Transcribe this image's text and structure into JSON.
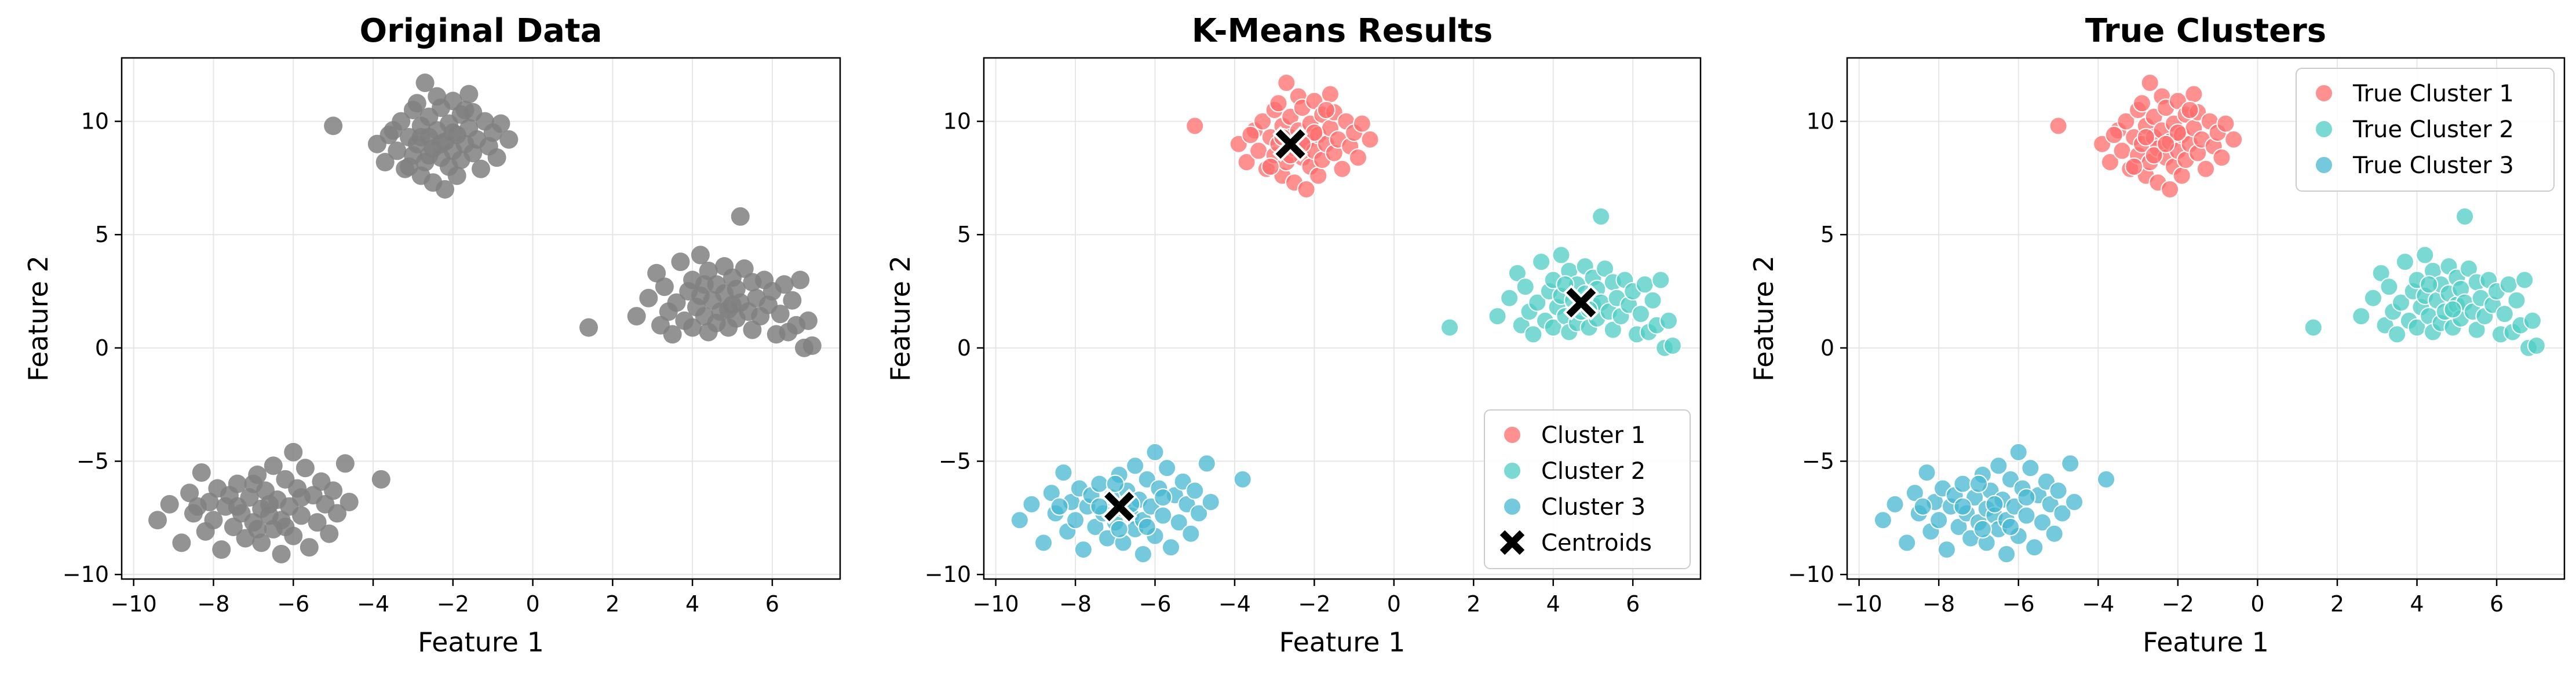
{
  "colors": {
    "gray": "#808080",
    "cluster1": "#FF6B6B",
    "cluster2": "#4ECDC4",
    "cluster3": "#45B7D1",
    "centroid": "#000000",
    "grid": "#e6e6e6"
  },
  "chart_data": [
    {
      "type": "scatter",
      "title": "Original Data",
      "xlabel": "Feature 1",
      "ylabel": "Feature 2",
      "xlim": [
        -10.3,
        7.7
      ],
      "ylim": [
        -10.2,
        12.8
      ],
      "xticks": [
        -10,
        -8,
        -6,
        -4,
        -2,
        0,
        2,
        4,
        6
      ],
      "yticks": [
        -10,
        -5,
        0,
        5,
        10
      ],
      "grid": true,
      "legend": null,
      "series": [
        {
          "color": "gray",
          "points_ref": "all"
        }
      ]
    },
    {
      "type": "scatter",
      "title": "K-Means Results",
      "xlabel": "Feature 1",
      "ylabel": "Feature 2",
      "xlim": [
        -10.3,
        7.7
      ],
      "ylim": [
        -10.2,
        12.8
      ],
      "xticks": [
        -10,
        -8,
        -6,
        -4,
        -2,
        0,
        2,
        4,
        6
      ],
      "yticks": [
        -10,
        -5,
        0,
        5,
        10
      ],
      "grid": true,
      "legend": "lower-right",
      "series": [
        {
          "name": "Cluster 1",
          "color": "cluster1",
          "points_ref": "c1"
        },
        {
          "name": "Cluster 2",
          "color": "cluster2",
          "points_ref": "c2"
        },
        {
          "name": "Cluster 3",
          "color": "cluster3",
          "points_ref": "c3"
        },
        {
          "name": "Centroids",
          "color": "centroid",
          "marker": "x",
          "points": [
            [
              -2.6,
              9.0
            ],
            [
              4.7,
              2.0
            ],
            [
              -6.9,
              -7.0
            ]
          ]
        }
      ]
    },
    {
      "type": "scatter",
      "title": "True Clusters",
      "xlabel": "Feature 1",
      "ylabel": "Feature 2",
      "xlim": [
        -10.3,
        7.7
      ],
      "ylim": [
        -10.2,
        12.8
      ],
      "xticks": [
        -10,
        -8,
        -6,
        -4,
        -2,
        0,
        2,
        4,
        6
      ],
      "yticks": [
        -10,
        -5,
        0,
        5,
        10
      ],
      "grid": true,
      "legend": "top-right",
      "series": [
        {
          "name": "True Cluster 1",
          "color": "cluster1",
          "points_ref": "c1"
        },
        {
          "name": "True Cluster 2",
          "color": "cluster2",
          "points_ref": "c2"
        },
        {
          "name": "True Cluster 3",
          "color": "cluster3",
          "points_ref": "c3"
        }
      ]
    }
  ],
  "points": {
    "c1": [
      [
        -5.0,
        9.8
      ],
      [
        -3.9,
        9.0
      ],
      [
        -3.7,
        8.2
      ],
      [
        -3.5,
        9.6
      ],
      [
        -3.4,
        8.7
      ],
      [
        -3.3,
        10.0
      ],
      [
        -3.2,
        7.9
      ],
      [
        -3.1,
        9.3
      ],
      [
        -3.0,
        8.5
      ],
      [
        -3.0,
        10.5
      ],
      [
        -2.9,
        9.0
      ],
      [
        -2.8,
        7.6
      ],
      [
        -2.8,
        9.8
      ],
      [
        -2.7,
        8.2
      ],
      [
        -2.7,
        11.7
      ],
      [
        -2.6,
        9.3
      ],
      [
        -2.6,
        10.2
      ],
      [
        -2.5,
        8.8
      ],
      [
        -2.5,
        7.3
      ],
      [
        -2.4,
        9.6
      ],
      [
        -2.4,
        11.1
      ],
      [
        -2.3,
        8.4
      ],
      [
        -2.3,
        10.6
      ],
      [
        -2.2,
        9.1
      ],
      [
        -2.2,
        7.0
      ],
      [
        -2.1,
        9.9
      ],
      [
        -2.1,
        8.0
      ],
      [
        -2.0,
        10.9
      ],
      [
        -2.0,
        8.7
      ],
      [
        -1.9,
        9.4
      ],
      [
        -1.9,
        7.6
      ],
      [
        -1.8,
        10.3
      ],
      [
        -1.8,
        8.3
      ],
      [
        -1.7,
        9.0
      ],
      [
        -1.6,
        11.2
      ],
      [
        -1.6,
        9.7
      ],
      [
        -1.5,
        8.6
      ],
      [
        -1.5,
        10.4
      ],
      [
        -1.4,
        9.2
      ],
      [
        -1.3,
        7.9
      ],
      [
        -1.2,
        10.0
      ],
      [
        -1.1,
        8.9
      ],
      [
        -1.0,
        9.5
      ],
      [
        -0.9,
        8.4
      ],
      [
        -0.8,
        9.9
      ],
      [
        -0.6,
        9.2
      ],
      [
        -2.9,
        10.8
      ],
      [
        -3.6,
        9.4
      ],
      [
        -2.0,
        9.5
      ],
      [
        -2.6,
        8.5
      ],
      [
        -1.7,
        10.5
      ],
      [
        -3.1,
        8.0
      ],
      [
        -2.3,
        9.0
      ],
      [
        -2.8,
        9.3
      ]
    ],
    "c2": [
      [
        1.4,
        0.9
      ],
      [
        2.6,
        1.4
      ],
      [
        2.9,
        2.2
      ],
      [
        3.1,
        3.3
      ],
      [
        3.2,
        1.0
      ],
      [
        3.3,
        2.7
      ],
      [
        3.4,
        1.6
      ],
      [
        3.5,
        0.6
      ],
      [
        3.6,
        2.0
      ],
      [
        3.7,
        3.8
      ],
      [
        3.8,
        1.2
      ],
      [
        3.9,
        2.5
      ],
      [
        4.0,
        0.9
      ],
      [
        4.0,
        3.0
      ],
      [
        4.1,
        1.8
      ],
      [
        4.2,
        4.1
      ],
      [
        4.2,
        2.3
      ],
      [
        4.3,
        1.4
      ],
      [
        4.4,
        3.4
      ],
      [
        4.4,
        0.7
      ],
      [
        4.5,
        2.1
      ],
      [
        4.6,
        1.1
      ],
      [
        4.6,
        2.8
      ],
      [
        4.7,
        1.6
      ],
      [
        4.8,
        3.6
      ],
      [
        4.8,
        2.4
      ],
      [
        4.9,
        0.9
      ],
      [
        5.0,
        1.9
      ],
      [
        5.0,
        3.1
      ],
      [
        5.1,
        2.6
      ],
      [
        5.1,
        1.3
      ],
      [
        5.2,
        5.8
      ],
      [
        5.2,
        2.0
      ],
      [
        5.3,
        3.5
      ],
      [
        5.4,
        1.6
      ],
      [
        5.5,
        2.9
      ],
      [
        5.5,
        0.8
      ],
      [
        5.6,
        2.2
      ],
      [
        5.7,
        1.4
      ],
      [
        5.8,
        3.0
      ],
      [
        5.9,
        1.9
      ],
      [
        6.0,
        2.5
      ],
      [
        6.1,
        0.6
      ],
      [
        6.2,
        1.5
      ],
      [
        6.3,
        2.8
      ],
      [
        6.4,
        0.7
      ],
      [
        6.5,
        2.1
      ],
      [
        6.6,
        1.0
      ],
      [
        6.7,
        3.0
      ],
      [
        6.8,
        0.0
      ],
      [
        6.9,
        1.2
      ],
      [
        7.0,
        0.1
      ],
      [
        4.3,
        2.8
      ],
      [
        4.9,
        1.7
      ]
    ],
    "c3": [
      [
        -9.4,
        -7.6
      ],
      [
        -9.1,
        -6.9
      ],
      [
        -8.8,
        -8.6
      ],
      [
        -8.6,
        -6.4
      ],
      [
        -8.5,
        -7.3
      ],
      [
        -8.3,
        -5.5
      ],
      [
        -8.2,
        -8.1
      ],
      [
        -8.1,
        -6.8
      ],
      [
        -8.0,
        -7.6
      ],
      [
        -7.9,
        -6.2
      ],
      [
        -7.8,
        -8.9
      ],
      [
        -7.7,
        -7.0
      ],
      [
        -7.6,
        -6.5
      ],
      [
        -7.5,
        -7.9
      ],
      [
        -7.4,
        -6.0
      ],
      [
        -7.3,
        -7.3
      ],
      [
        -7.2,
        -8.4
      ],
      [
        -7.1,
        -6.6
      ],
      [
        -7.0,
        -7.7
      ],
      [
        -6.9,
        -5.6
      ],
      [
        -6.8,
        -7.1
      ],
      [
        -6.8,
        -8.6
      ],
      [
        -6.7,
        -6.3
      ],
      [
        -6.6,
        -7.4
      ],
      [
        -6.5,
        -5.2
      ],
      [
        -6.5,
        -8.0
      ],
      [
        -6.4,
        -6.7
      ],
      [
        -6.3,
        -7.6
      ],
      [
        -6.3,
        -9.1
      ],
      [
        -6.2,
        -5.8
      ],
      [
        -6.1,
        -7.0
      ],
      [
        -6.0,
        -4.6
      ],
      [
        -6.0,
        -8.3
      ],
      [
        -5.9,
        -6.2
      ],
      [
        -5.8,
        -7.4
      ],
      [
        -5.7,
        -5.3
      ],
      [
        -5.6,
        -8.8
      ],
      [
        -5.5,
        -6.5
      ],
      [
        -5.4,
        -7.7
      ],
      [
        -5.3,
        -5.9
      ],
      [
        -5.2,
        -6.9
      ],
      [
        -5.1,
        -8.2
      ],
      [
        -5.0,
        -6.3
      ],
      [
        -4.9,
        -7.3
      ],
      [
        -4.7,
        -5.1
      ],
      [
        -4.6,
        -6.8
      ],
      [
        -3.8,
        -5.8
      ],
      [
        -7.0,
        -6.0
      ],
      [
        -6.6,
        -6.9
      ],
      [
        -7.4,
        -7.0
      ],
      [
        -6.2,
        -7.9
      ],
      [
        -5.8,
        -6.6
      ],
      [
        -8.4,
        -7.0
      ],
      [
        -6.9,
        -8.0
      ]
    ]
  }
}
